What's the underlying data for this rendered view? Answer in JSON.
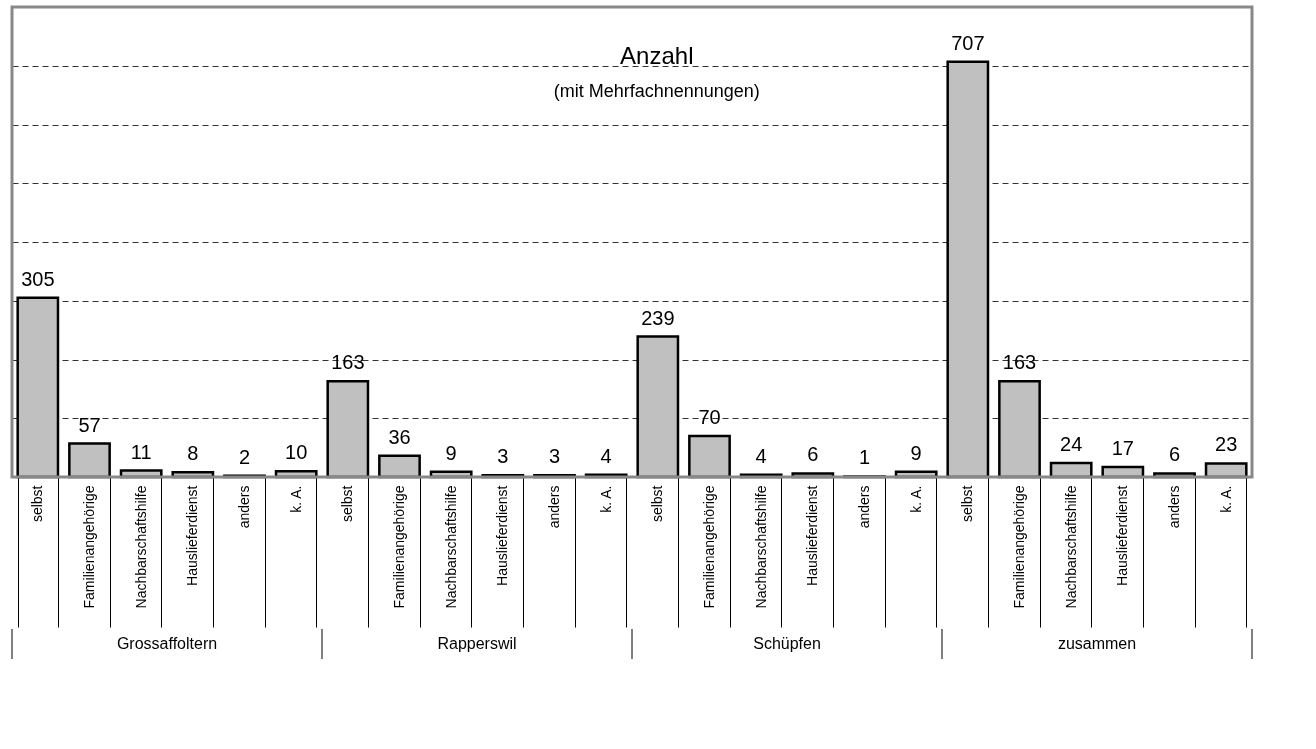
{
  "chart_data": {
    "type": "bar",
    "title": "Anzahl",
    "subtitle": "(mit Mehrfachnennungen)",
    "categories": [
      "selbst",
      "Familienangehörige",
      "Nachbarschaftshilfe",
      "Hauslieferdienst",
      "anders",
      "k. A.",
      "selbst",
      "Familienangehörige",
      "Nachbarschaftshilfe",
      "Hauslieferdienst",
      "anders",
      "k. A.",
      "selbst",
      "Familienangehörige",
      "Nachbarschaftshilfe",
      "Hauslieferdienst",
      "anders",
      "k. A.",
      "selbst",
      "Familienangehörige",
      "Nachbarschaftshilfe",
      "Hauslieferdienst",
      "anders",
      "k. A."
    ],
    "values": [
      305,
      57,
      11,
      8,
      2,
      10,
      163,
      36,
      9,
      3,
      3,
      4,
      239,
      70,
      4,
      6,
      1,
      9,
      707,
      163,
      24,
      17,
      6,
      23
    ],
    "color": "#c0c0c0",
    "annotations": [
      "Grossaffoltern",
      "Rapperswil",
      "Schüpfen",
      "zusammen"
    ],
    "ylim": [
      0,
      800
    ],
    "yticks": [
      {
        "value": 100,
        "label": null
      },
      {
        "value": 200,
        "label": null
      },
      {
        "value": 300,
        "label": null
      },
      {
        "value": 400,
        "label": null
      },
      {
        "value": 500,
        "label": null
      },
      {
        "value": 600,
        "label": null
      },
      {
        "value": 700,
        "label": null
      }
    ],
    "grid": "y",
    "tick_labels": "x",
    "data_labels": true
  }
}
